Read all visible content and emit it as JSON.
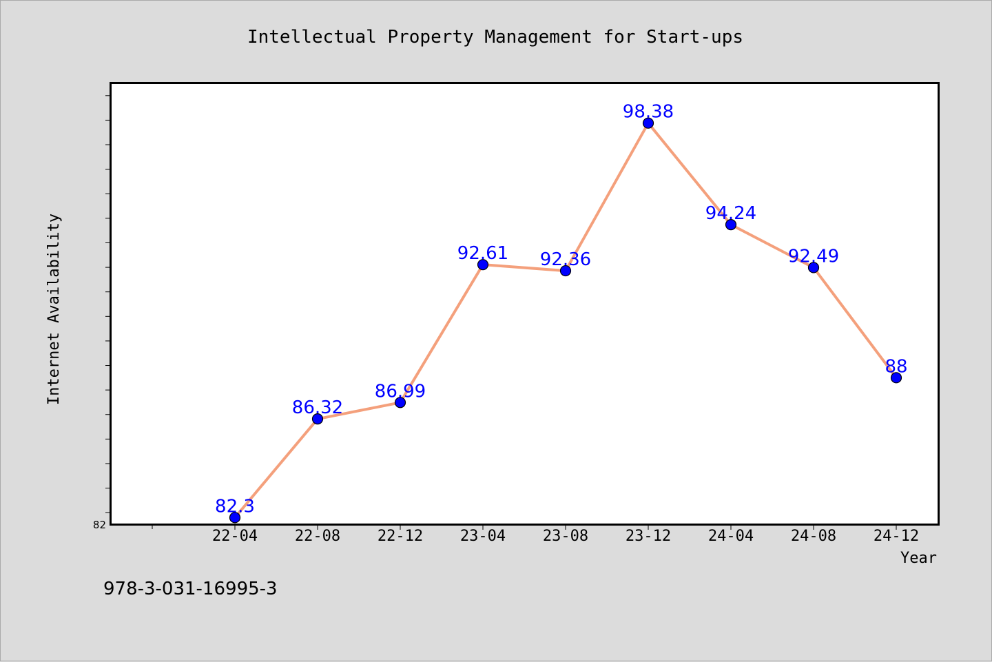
{
  "chart_data": {
    "type": "line",
    "title": "Intellectual Property Management for Start-ups",
    "xlabel": "Year",
    "ylabel": "Internet Availability",
    "categories": [
      "22-04",
      "22-08",
      "22-12",
      "23-04",
      "23-08",
      "23-12",
      "24-04",
      "24-08",
      "24-12"
    ],
    "series": [
      {
        "values": [
          82.3,
          86.32,
          86.99,
          92.61,
          92.36,
          98.38,
          94.24,
          92.49,
          88
        ]
      }
    ],
    "data_labels": [
      "82.3",
      "86.32",
      "86.99",
      "92.61",
      "92.36",
      "98.38",
      "94.24",
      "92.49",
      "88"
    ],
    "ylim": [
      82,
      100
    ],
    "yticks_labeled": [
      "82"
    ],
    "grid": false,
    "line_color": "#f4a07c",
    "marker_color": "#0000ff",
    "label_color": "#0000ff"
  },
  "footer": {
    "isbn": "978-3-031-16995-3"
  }
}
